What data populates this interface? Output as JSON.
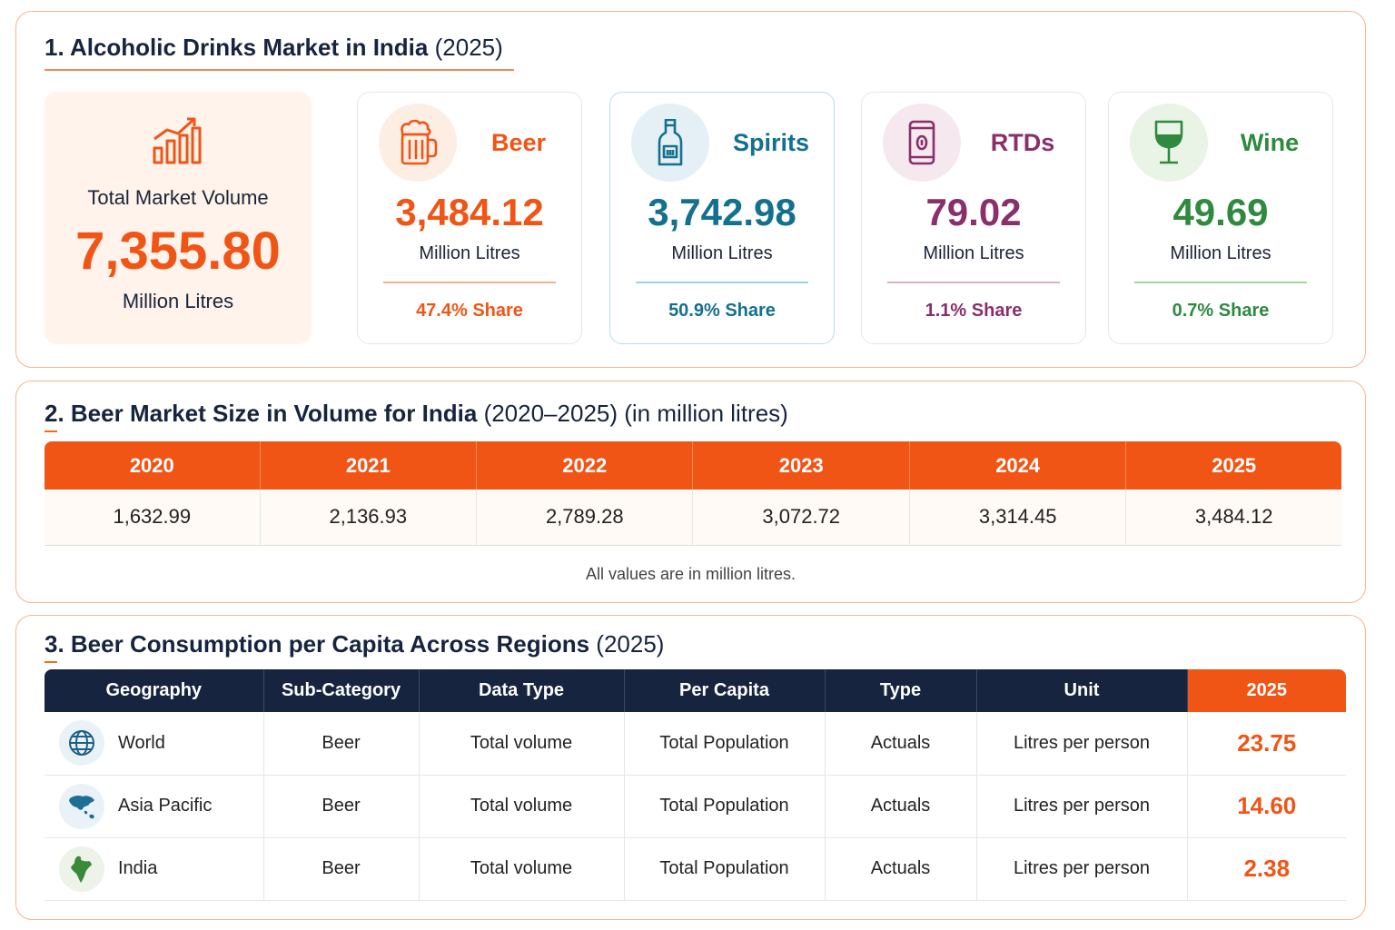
{
  "section1": {
    "title_bold": "1. Alcoholic Drinks Market in India",
    "title_light": "(2025)",
    "total": {
      "icon": "bar-chart-growth-icon",
      "label": "Total Market Volume",
      "value": "7,355.80",
      "unit": "Million Litres"
    },
    "categories": [
      {
        "name": "Beer",
        "icon": "beer-mug-icon",
        "value": "3,484.12",
        "unit": "Million Litres",
        "share": "47.4% Share",
        "color": "#f05516",
        "circle_bg": "#fdeee4"
      },
      {
        "name": "Spirits",
        "icon": "bottle-icon",
        "value": "3,742.98",
        "unit": "Million Litres",
        "share": "50.9% Share",
        "color": "#13708f",
        "circle_bg": "#e4f0f6"
      },
      {
        "name": "RTDs",
        "icon": "can-icon",
        "value": "79.02",
        "unit": "Million Litres",
        "share": "1.1% Share",
        "color": "#8a2f6a",
        "circle_bg": "#f5e8ef"
      },
      {
        "name": "Wine",
        "icon": "wine-glass-icon",
        "value": "49.69",
        "unit": "Million Litres",
        "share": "0.7% Share",
        "color": "#2e8a3e",
        "circle_bg": "#e9f3e6"
      }
    ]
  },
  "section2": {
    "title_bold": "2. Beer Market Size in Volume for India",
    "title_light": "(2020–2025) (in million litres)",
    "years": [
      "2020",
      "2021",
      "2022",
      "2023",
      "2024",
      "2025"
    ],
    "values": [
      "1,632.99",
      "2,136.93",
      "2,789.28",
      "3,072.72",
      "3,314.45",
      "3,484.12"
    ],
    "footnote": "All values are in million litres."
  },
  "section3": {
    "title_bold": "3. Beer Consumption per Capita Across Regions",
    "title_light": "(2025)",
    "headers": [
      "Geography",
      "Sub-Category",
      "Data Type",
      "Per Capita",
      "Type",
      "Unit",
      "2025"
    ],
    "rows": [
      {
        "geography": "World",
        "icon": "globe-icon",
        "sub_category": "Beer",
        "data_type": "Total volume",
        "per_capita": "Total Population",
        "type": "Actuals",
        "unit": "Litres per person",
        "value": "23.75"
      },
      {
        "geography": "Asia Pacific",
        "icon": "asia-map-icon",
        "sub_category": "Beer",
        "data_type": "Total volume",
        "per_capita": "Total Population",
        "type": "Actuals",
        "unit": "Litres per person",
        "value": "14.60"
      },
      {
        "geography": "India",
        "icon": "india-map-icon",
        "sub_category": "Beer",
        "data_type": "Total volume",
        "per_capita": "Total Population",
        "type": "Actuals",
        "unit": "Litres per person",
        "value": "2.38"
      }
    ]
  }
}
